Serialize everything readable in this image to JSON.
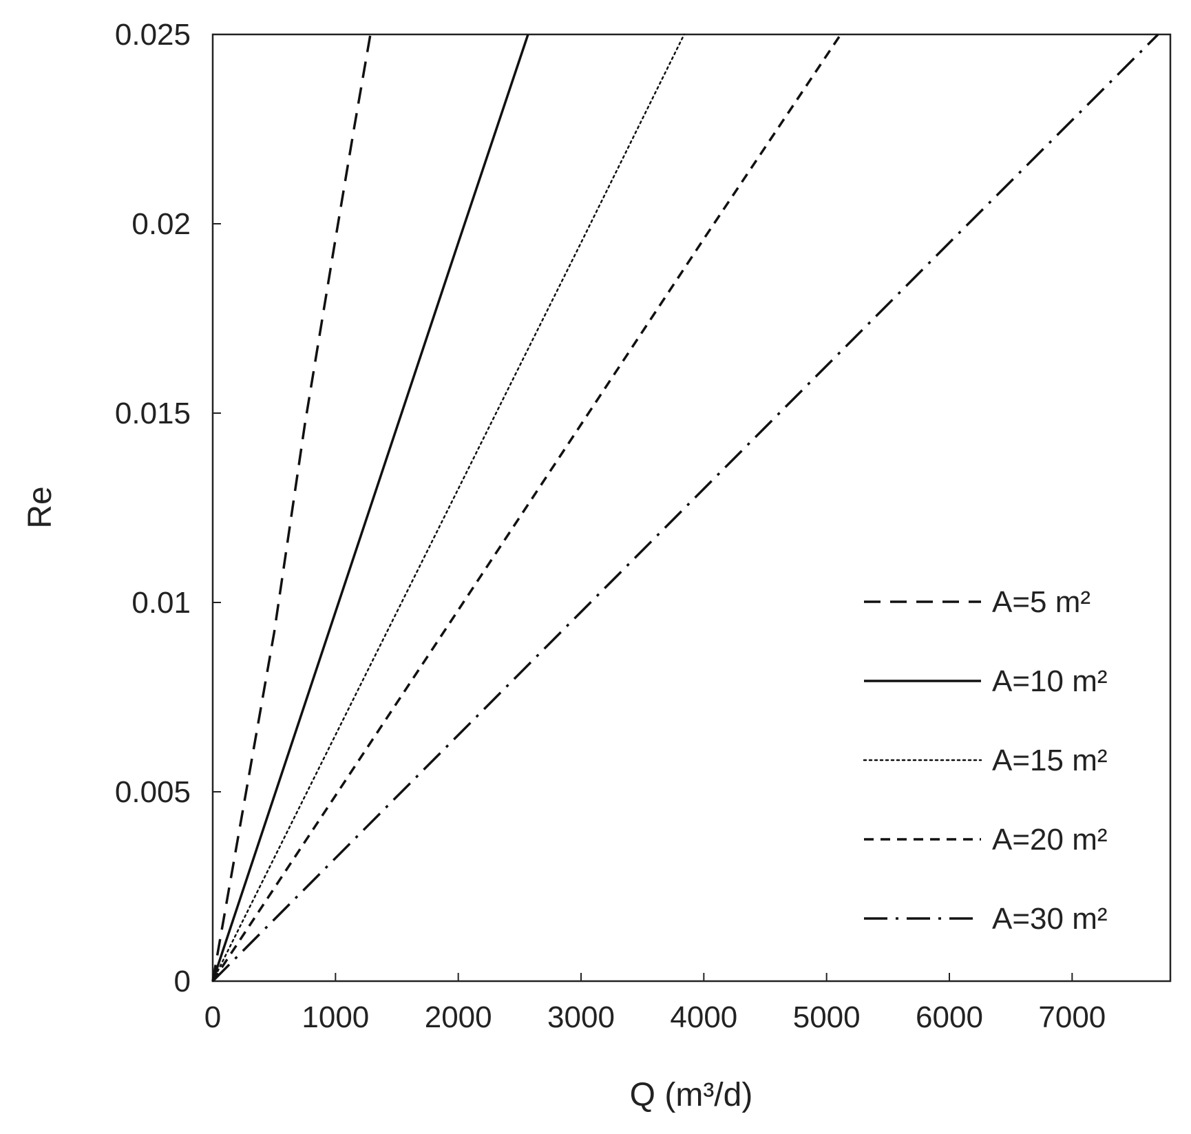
{
  "chart_data": {
    "type": "line",
    "title": "",
    "xlabel": "Q (m³/d)",
    "ylabel": "Re",
    "xlim": [
      0,
      7800
    ],
    "ylim": [
      0,
      0.025
    ],
    "xticks": [
      "0",
      "1000",
      "2000",
      "3000",
      "4000",
      "5000",
      "6000",
      "7000"
    ],
    "yticks": [
      "0",
      "0.005",
      "0.01",
      "0.015",
      "0.02",
      "0.025"
    ],
    "grid": false,
    "legend_position": "bottom-right",
    "series": [
      {
        "name": "A=5 m²",
        "style": "long-dash",
        "x": [
          0,
          250,
          500,
          750,
          1000,
          1150,
          1284
        ],
        "y": [
          0,
          0.0046,
          0.0092,
          0.0147,
          0.0196,
          0.0225,
          0.025
        ]
      },
      {
        "name": "A=10 m²",
        "style": "solid",
        "x": [
          0,
          1000,
          2000,
          2568
        ],
        "y": [
          0,
          0.00975,
          0.0195,
          0.025
        ]
      },
      {
        "name": "A=15 m²",
        "style": "dotted",
        "x": [
          0,
          1000,
          2000,
          3000,
          3840
        ],
        "y": [
          0,
          0.0065,
          0.013,
          0.0195,
          0.025
        ]
      },
      {
        "name": "A=20 m²",
        "style": "short-dash",
        "x": [
          0,
          1000,
          2000,
          3000,
          4000,
          5115
        ],
        "y": [
          0,
          0.0049,
          0.0098,
          0.0147,
          0.0196,
          0.025
        ]
      },
      {
        "name": "A=30 m²",
        "style": "dash-dot",
        "x": [
          0,
          2000,
          4000,
          6000,
          7700
        ],
        "y": [
          0,
          0.0065,
          0.013,
          0.0195,
          0.025
        ]
      }
    ]
  }
}
